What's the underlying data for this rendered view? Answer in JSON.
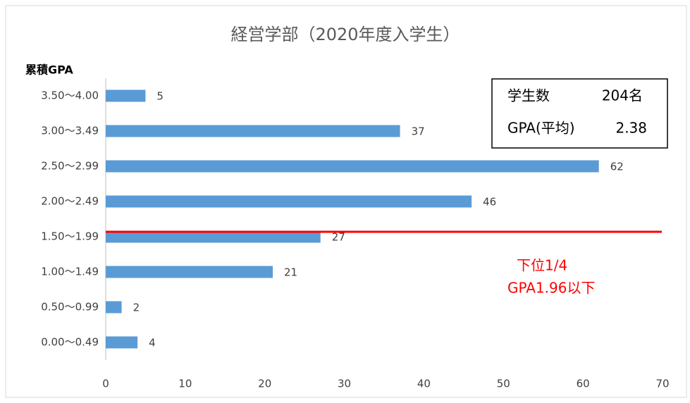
{
  "chart_data": {
    "type": "barh",
    "title": "経営学部（2020年度入学生）",
    "y_label": "累積GPA",
    "categories": [
      "3.50〜4.00",
      "3.00〜3.49",
      "2.50〜2.99",
      "2.00〜2.49",
      "1.50〜1.99",
      "1.00〜1.49",
      "0.50〜0.99",
      "0.00〜0.49"
    ],
    "values": [
      5,
      37,
      62,
      46,
      27,
      21,
      2,
      4
    ],
    "color": "#5b9bd5",
    "xlim": [
      0,
      70
    ],
    "xticks": [
      0,
      10,
      20,
      30,
      40,
      50,
      60,
      70
    ],
    "grid": false,
    "info_box": [
      [
        "学生数",
        "204名"
      ],
      [
        "GPA(平均)",
        "2.38"
      ]
    ],
    "annotation": [
      "下位1/4",
      "GPA1.96以下"
    ],
    "annotation_color": "#ff0000"
  }
}
